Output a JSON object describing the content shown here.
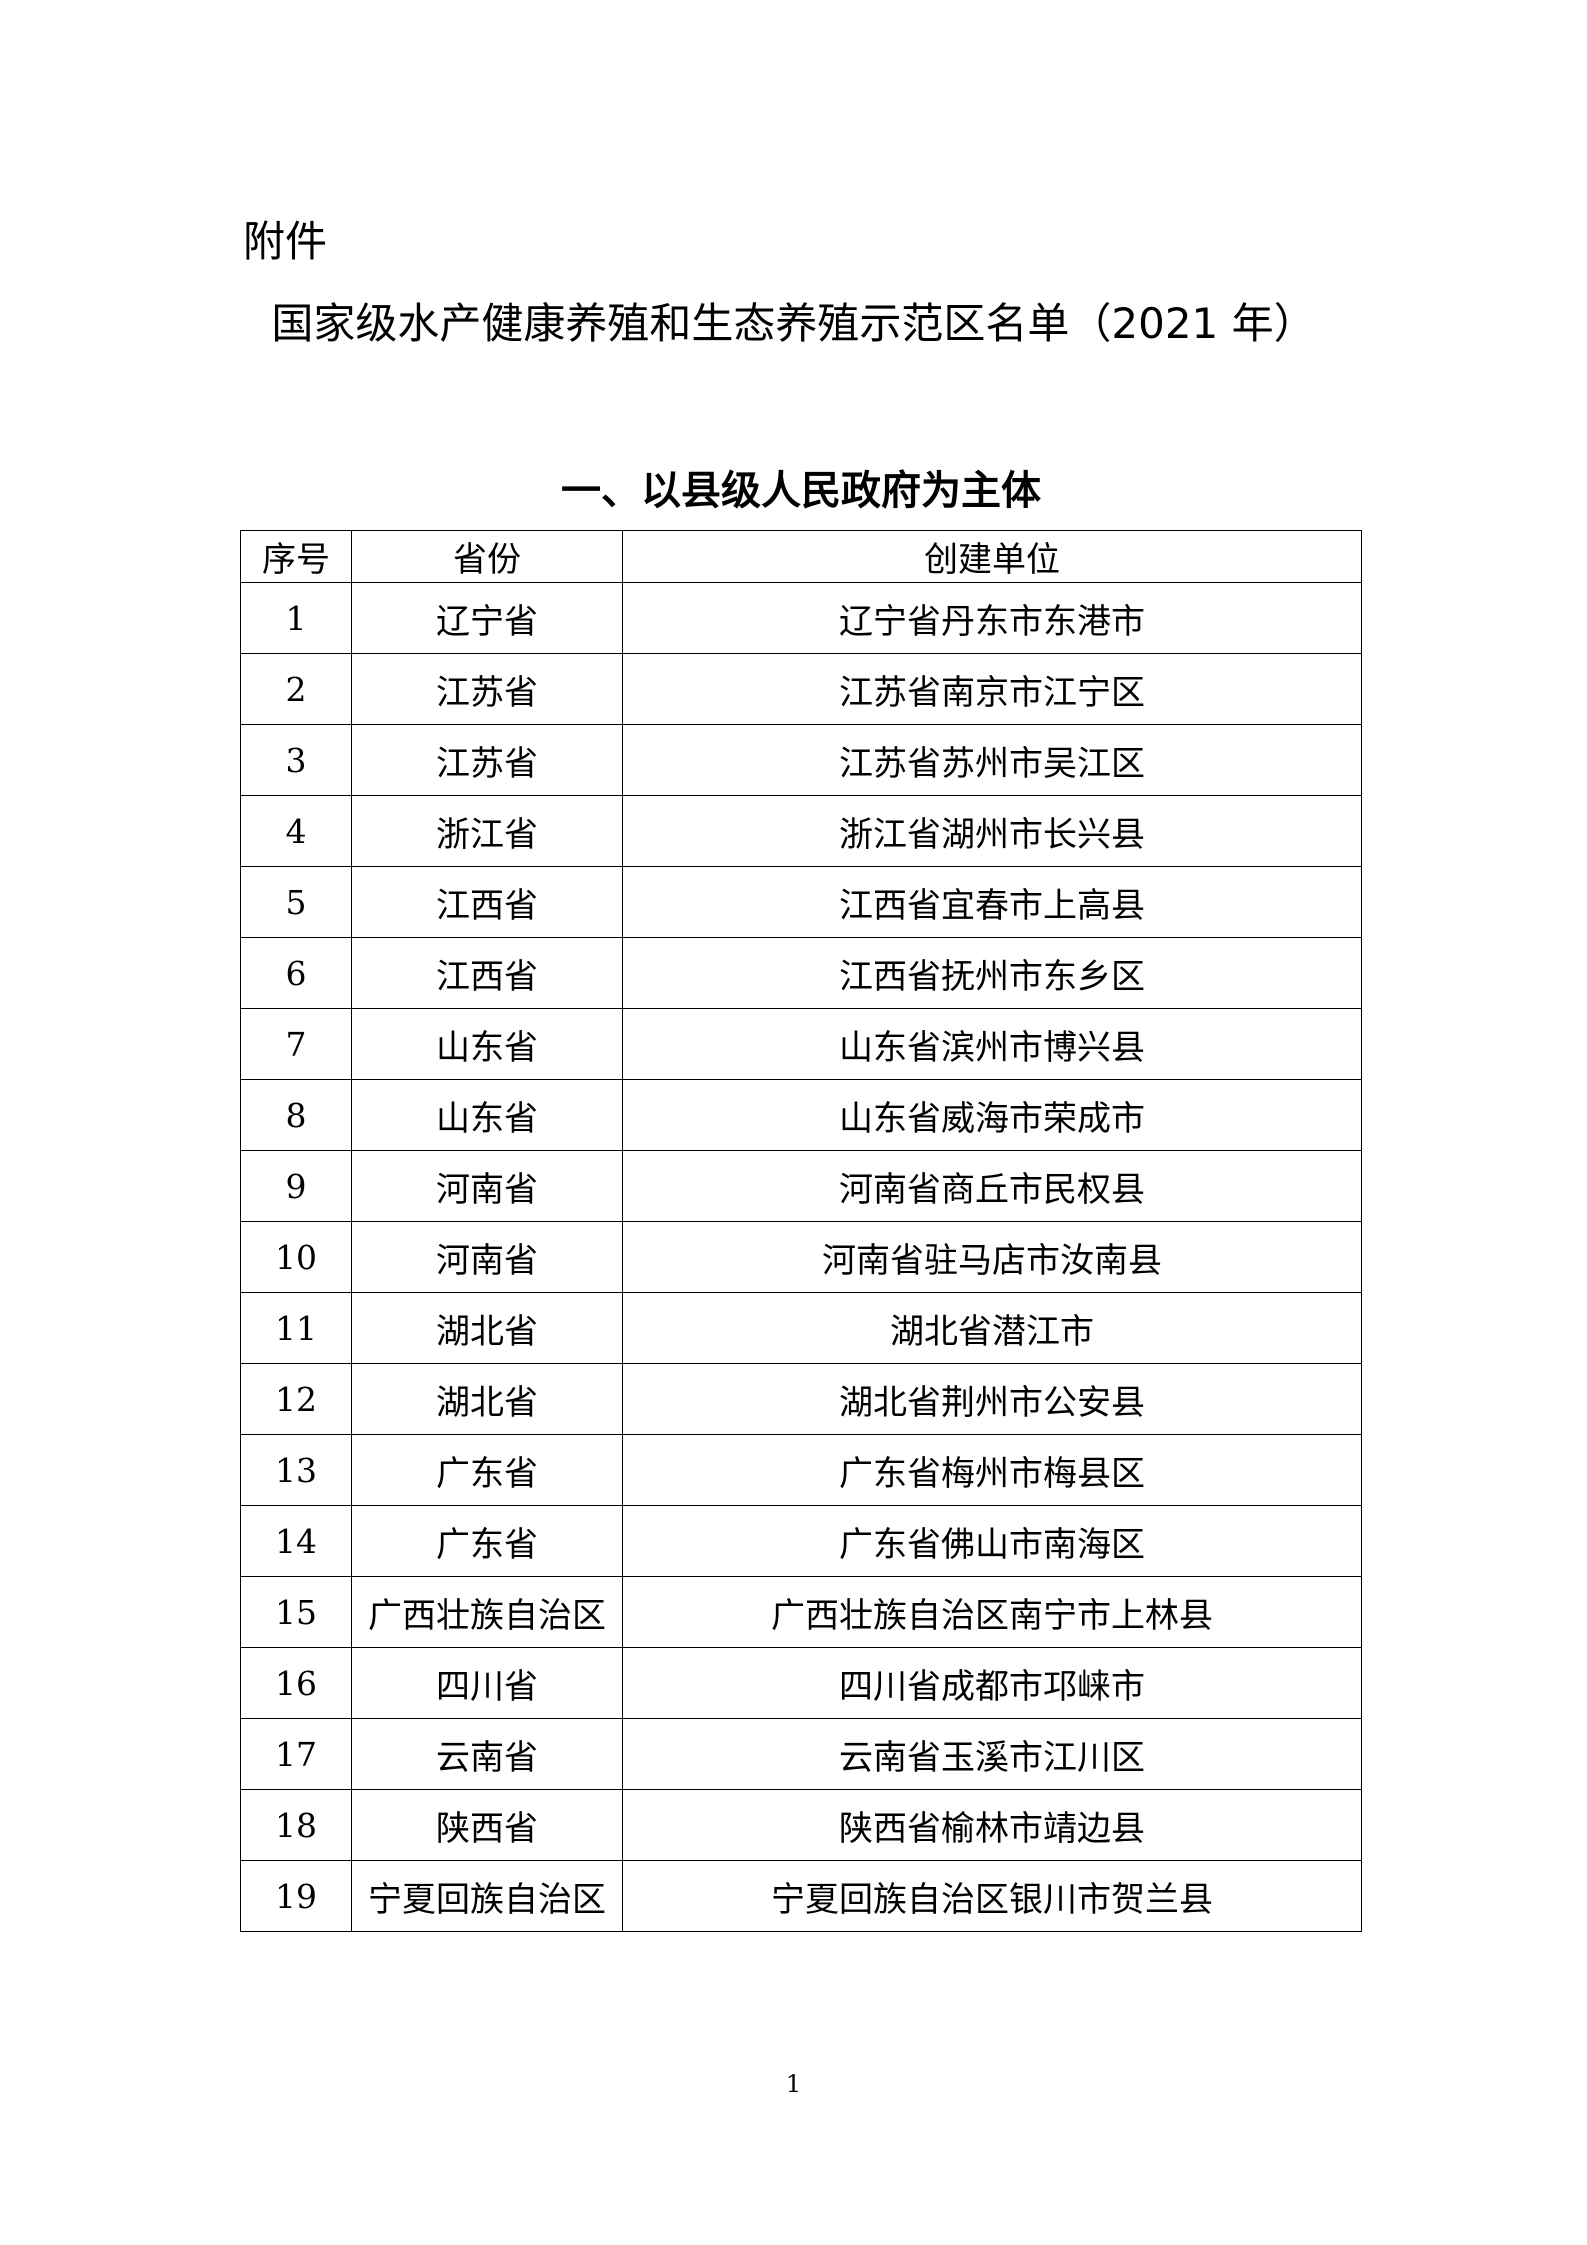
{
  "attachment_label": "附件",
  "title": "国家级水产健康养殖和生态养殖示范区名单（2021 年）",
  "section_heading": "一、以县级人民政府为主体",
  "table": {
    "headers": [
      "序号",
      "省份",
      "创建单位"
    ],
    "rows": [
      [
        "1",
        "辽宁省",
        "辽宁省丹东市东港市"
      ],
      [
        "2",
        "江苏省",
        "江苏省南京市江宁区"
      ],
      [
        "3",
        "江苏省",
        "江苏省苏州市吴江区"
      ],
      [
        "4",
        "浙江省",
        "浙江省湖州市长兴县"
      ],
      [
        "5",
        "江西省",
        "江西省宜春市上高县"
      ],
      [
        "6",
        "江西省",
        "江西省抚州市东乡区"
      ],
      [
        "7",
        "山东省",
        "山东省滨州市博兴县"
      ],
      [
        "8",
        "山东省",
        "山东省威海市荣成市"
      ],
      [
        "9",
        "河南省",
        "河南省商丘市民权县"
      ],
      [
        "10",
        "河南省",
        "河南省驻马店市汝南县"
      ],
      [
        "11",
        "湖北省",
        "湖北省潜江市"
      ],
      [
        "12",
        "湖北省",
        "湖北省荆州市公安县"
      ],
      [
        "13",
        "广东省",
        "广东省梅州市梅县区"
      ],
      [
        "14",
        "广东省",
        "广东省佛山市南海区"
      ],
      [
        "15",
        "广西壮族自治区",
        "广西壮族自治区南宁市上林县"
      ],
      [
        "16",
        "四川省",
        "四川省成都市邛崃市"
      ],
      [
        "17",
        "云南省",
        "云南省玉溪市江川区"
      ],
      [
        "18",
        "陕西省",
        "陕西省榆林市靖边县"
      ],
      [
        "19",
        "宁夏回族自治区",
        "宁夏回族自治区银川市贺兰县"
      ]
    ]
  },
  "page_number": "1"
}
